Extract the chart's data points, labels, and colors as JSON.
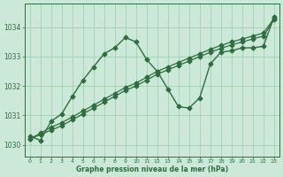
{
  "xlabel": "Graphe pression niveau de la mer (hPa)",
  "bg_color": "#cce8d8",
  "grid_color": "#99ccaa",
  "line_color": "#2d6e3e",
  "xlim": [
    -0.5,
    23.5
  ],
  "ylim": [
    1029.6,
    1034.8
  ],
  "yticks": [
    1030,
    1031,
    1032,
    1033,
    1034
  ],
  "xticks": [
    0,
    1,
    2,
    3,
    4,
    5,
    6,
    7,
    8,
    9,
    10,
    11,
    12,
    13,
    14,
    15,
    16,
    17,
    18,
    19,
    20,
    21,
    22,
    23
  ],
  "series1_x": [
    0,
    1,
    2,
    3,
    4,
    5,
    6,
    7,
    8,
    9,
    10,
    11,
    12,
    13,
    14,
    15,
    16,
    17,
    18,
    19,
    20,
    21,
    22,
    23
  ],
  "series1_y": [
    1030.3,
    1030.15,
    1030.8,
    1031.05,
    1031.65,
    1032.2,
    1032.65,
    1033.1,
    1033.3,
    1033.65,
    1033.5,
    1032.9,
    1032.5,
    1031.9,
    1031.3,
    1031.25,
    1031.6,
    1032.75,
    1033.15,
    1033.2,
    1033.3,
    1033.3,
    1033.35,
    1034.35
  ],
  "series2_x": [
    0,
    1,
    2,
    3,
    4,
    5,
    6,
    7,
    8,
    9,
    10,
    11,
    12,
    13,
    14,
    15,
    16,
    17,
    18,
    19,
    20,
    21,
    22,
    23
  ],
  "series2_y": [
    1030.2,
    1030.4,
    1030.6,
    1030.75,
    1030.95,
    1031.15,
    1031.35,
    1031.55,
    1031.75,
    1031.95,
    1032.1,
    1032.3,
    1032.5,
    1032.65,
    1032.8,
    1032.95,
    1033.1,
    1033.25,
    1033.38,
    1033.5,
    1033.6,
    1033.7,
    1033.8,
    1034.3
  ],
  "series3_x": [
    0,
    1,
    2,
    3,
    4,
    5,
    6,
    7,
    8,
    9,
    10,
    11,
    12,
    13,
    14,
    15,
    16,
    17,
    18,
    19,
    20,
    21,
    22,
    23
  ],
  "series3_y": [
    1030.2,
    1030.35,
    1030.5,
    1030.65,
    1030.85,
    1031.05,
    1031.25,
    1031.45,
    1031.65,
    1031.85,
    1032.0,
    1032.2,
    1032.4,
    1032.55,
    1032.7,
    1032.85,
    1033.0,
    1033.15,
    1033.28,
    1033.4,
    1033.5,
    1033.6,
    1033.7,
    1034.25
  ]
}
